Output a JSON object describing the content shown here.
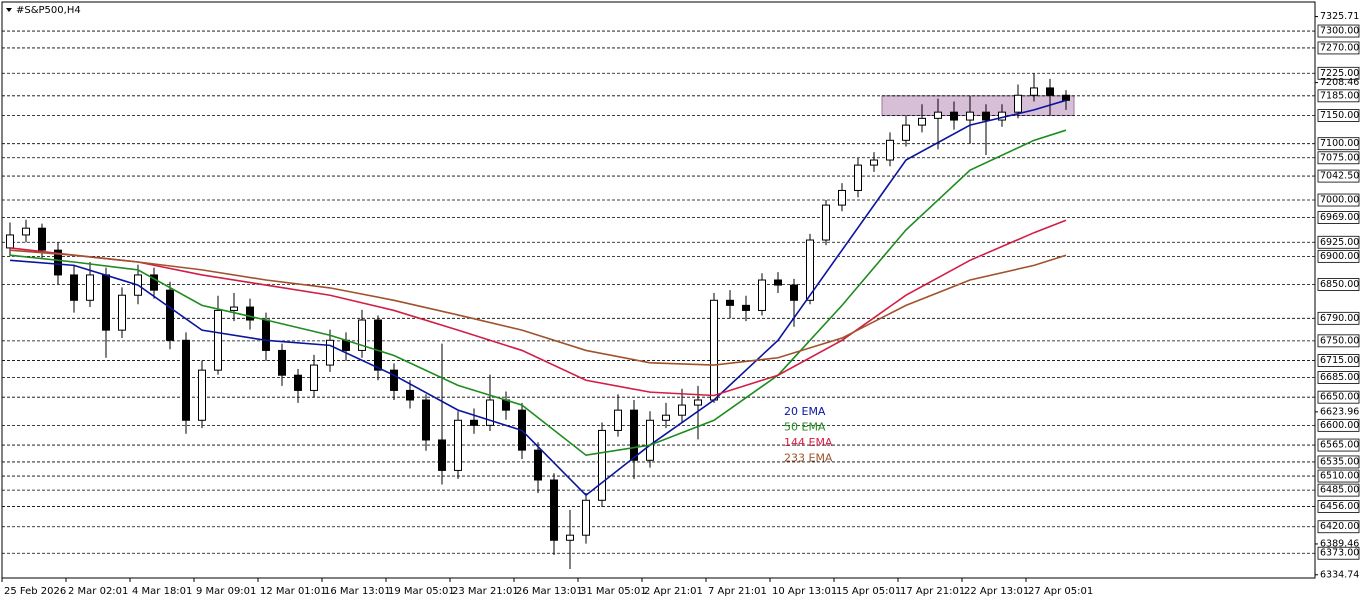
{
  "chart_data": {
    "type": "candlestick",
    "title": "#S&P500,H4",
    "categories": [
      "25 Feb 2026",
      null,
      null,
      null,
      "2 Mar 02:01",
      null,
      null,
      null,
      "4 Mar 18:01",
      null,
      null,
      null,
      "9 Mar 09:01",
      null,
      null,
      null,
      "12 Mar 01:01",
      null,
      null,
      null,
      "16 Mar 13:01",
      null,
      null,
      null,
      "19 Mar 05:01",
      null,
      null,
      null,
      "23 Mar 21:01",
      null,
      null,
      null,
      "26 Mar 13:01",
      null,
      null,
      null,
      "31 Mar 05:01",
      null,
      null,
      null,
      "2 Apr 21:01",
      null,
      null,
      null,
      "7 Apr 21:01",
      null,
      null,
      null,
      "10 Apr 13:01",
      null,
      null,
      null,
      "15 Apr 05:01",
      null,
      null,
      null,
      "17 Apr 21:01",
      null,
      null,
      null,
      "22 Apr 13:01",
      null,
      null,
      null,
      "27 Apr 05:01",
      null,
      null
    ],
    "open": [
      6915,
      6938,
      6950,
      6911,
      6867,
      6822,
      6867,
      6769,
      6831,
      6867,
      6840,
      6751,
      6609,
      6698,
      6804,
      6810,
      6787,
      6733,
      6689,
      6662,
      6707,
      6751,
      6733,
      6787,
      6698,
      6662,
      6645,
      6574,
      6520,
      6609,
      6600,
      6645,
      6627,
      6556,
      6503,
      6396,
      6405,
      6467,
      6591,
      6627,
      6538,
      6609,
      6618,
      6636,
      6645,
      6822,
      6813,
      6804,
      6858,
      6849,
      6822,
      6929,
      6991,
      7017,
      7062,
      7071,
      7106,
      7133,
      7145,
      7156,
      7142,
      7156,
      7142,
      7156,
      7186,
      7199,
      7186
    ],
    "high": [
      6960,
      6965,
      6958,
      6925,
      6885,
      6890,
      6880,
      6845,
      6885,
      6880,
      6855,
      6765,
      6715,
      6830,
      6835,
      6825,
      6800,
      6745,
      6700,
      6725,
      6770,
      6765,
      6805,
      6795,
      6710,
      6680,
      6655,
      6745,
      6625,
      6630,
      6690,
      6660,
      6640,
      6570,
      6515,
      6450,
      6480,
      6605,
      6655,
      6645,
      6625,
      6640,
      6665,
      6670,
      6835,
      6840,
      6830,
      6870,
      6872,
      6860,
      6940,
      7000,
      7030,
      7075,
      7085,
      7120,
      7150,
      7170,
      7180,
      7175,
      7185,
      7170,
      7170,
      7205,
      7225,
      7215,
      7195
    ],
    "low": [
      6900,
      6925,
      6895,
      6850,
      6800,
      6810,
      6720,
      6755,
      6815,
      6825,
      6735,
      6585,
      6595,
      6690,
      6785,
      6770,
      6715,
      6670,
      6640,
      6650,
      6695,
      6715,
      6720,
      6680,
      6645,
      6630,
      6555,
      6495,
      6505,
      6585,
      6590,
      6610,
      6540,
      6480,
      6370,
      6345,
      6390,
      6455,
      6580,
      6505,
      6525,
      6595,
      6605,
      6575,
      6640,
      6790,
      6785,
      6795,
      6835,
      6775,
      6815,
      6920,
      6980,
      7005,
      7050,
      7060,
      7095,
      7120,
      7090,
      7125,
      7100,
      7080,
      7130,
      7145,
      7175,
      7150,
      7160
    ],
    "close": [
      6938,
      6950,
      6911,
      6867,
      6822,
      6867,
      6769,
      6831,
      6867,
      6840,
      6751,
      6609,
      6698,
      6804,
      6810,
      6787,
      6733,
      6689,
      6662,
      6707,
      6751,
      6733,
      6787,
      6698,
      6662,
      6645,
      6574,
      6520,
      6609,
      6600,
      6645,
      6627,
      6556,
      6503,
      6396,
      6405,
      6467,
      6591,
      6627,
      6538,
      6609,
      6618,
      6636,
      6645,
      6822,
      6813,
      6804,
      6858,
      6849,
      6822,
      6929,
      6991,
      7017,
      7062,
      7071,
      7106,
      7133,
      7145,
      7156,
      7142,
      7156,
      7142,
      7156,
      7186,
      7199,
      7186,
      7177
    ],
    "series": [
      {
        "name": "20 EMA",
        "color": "#0a14a0",
        "x": [
          0,
          4,
          8,
          12,
          16,
          20,
          24,
          28,
          32,
          36,
          40,
          44,
          48,
          52,
          56,
          60,
          64,
          66
        ],
        "values": [
          6893,
          6884,
          6849,
          6769,
          6751,
          6742,
          6689,
          6627,
          6591,
          6476,
          6565,
          6645,
          6751,
          6911,
          7071,
          7133,
          7160,
          7177
        ]
      },
      {
        "name": "50 EMA",
        "color": "#1e8c1e",
        "x": [
          0,
          4,
          8,
          12,
          16,
          20,
          24,
          28,
          32,
          36,
          40,
          44,
          48,
          52,
          56,
          60,
          64,
          66
        ],
        "values": [
          6902,
          6890,
          6876,
          6813,
          6787,
          6760,
          6724,
          6671,
          6636,
          6547,
          6565,
          6609,
          6689,
          6813,
          6947,
          7053,
          7106,
          7124
        ]
      },
      {
        "name": "144 EMA",
        "color": "#d21e46",
        "x": [
          0,
          4,
          8,
          12,
          16,
          20,
          24,
          28,
          32,
          36,
          40,
          44,
          48,
          52,
          56,
          60,
          64,
          66
        ],
        "values": [
          6915,
          6902,
          6890,
          6867,
          6849,
          6831,
          6804,
          6769,
          6733,
          6680,
          6659,
          6653,
          6689,
          6751,
          6831,
          6893,
          6942,
          6964
        ]
      },
      {
        "name": "233 EMA",
        "color": "#a0522d",
        "x": [
          0,
          4,
          8,
          12,
          16,
          20,
          24,
          28,
          32,
          36,
          40,
          44,
          48,
          52,
          56,
          60,
          64,
          66
        ],
        "values": [
          6911,
          6902,
          6890,
          6876,
          6858,
          6844,
          6822,
          6796,
          6769,
          6733,
          6711,
          6707,
          6720,
          6755,
          6813,
          6858,
          6884,
          6902
        ]
      }
    ],
    "zone": {
      "from": 55,
      "to": 66,
      "top": 7185,
      "bottom": 7150,
      "color": "#d8bfd8"
    },
    "ylim": [
      6329,
      7348
    ],
    "levels": [
      {
        "value": 7300,
        "label": "7300.00"
      },
      {
        "value": 7270,
        "label": "7270.00"
      },
      {
        "value": 7225,
        "label": "7225.00"
      },
      {
        "value": 7185,
        "label": "7185.00"
      },
      {
        "value": 7150,
        "label": "7150.00"
      },
      {
        "value": 7100,
        "label": "7100.00"
      },
      {
        "value": 7075,
        "label": "7075.00"
      },
      {
        "value": 7042.5,
        "label": "7042.50"
      },
      {
        "value": 7000,
        "label": "7000.00"
      },
      {
        "value": 6969,
        "label": "6969.00"
      },
      {
        "value": 6925,
        "label": "6925.00"
      },
      {
        "value": 6900,
        "label": "6900.00"
      },
      {
        "value": 6850,
        "label": "6850.00"
      },
      {
        "value": 6790,
        "label": "6790.00"
      },
      {
        "value": 6750,
        "label": "6750.00"
      },
      {
        "value": 6715,
        "label": "6715.00"
      },
      {
        "value": 6685,
        "label": "6685.00"
      },
      {
        "value": 6650,
        "label": "6650.00"
      },
      {
        "value": 6600,
        "label": "6600.00"
      },
      {
        "value": 6565,
        "label": "6565.00"
      },
      {
        "value": 6535,
        "label": "6535.00"
      },
      {
        "value": 6510,
        "label": "6510.00"
      },
      {
        "value": 6485,
        "label": "6485.00"
      },
      {
        "value": 6456,
        "label": "6456.00"
      },
      {
        "value": 6420,
        "label": "6420.00"
      },
      {
        "value": 6373,
        "label": "6373.00"
      }
    ],
    "yticks": [
      {
        "value": 7325.71,
        "label": "7325.71"
      },
      {
        "value": 7208.46,
        "label": "7208.46"
      },
      {
        "value": 6623.96,
        "label": "6623.96"
      },
      {
        "value": 6389.46,
        "label": "6389.46"
      },
      {
        "value": 6334.74,
        "label": "6334.74"
      }
    ]
  }
}
